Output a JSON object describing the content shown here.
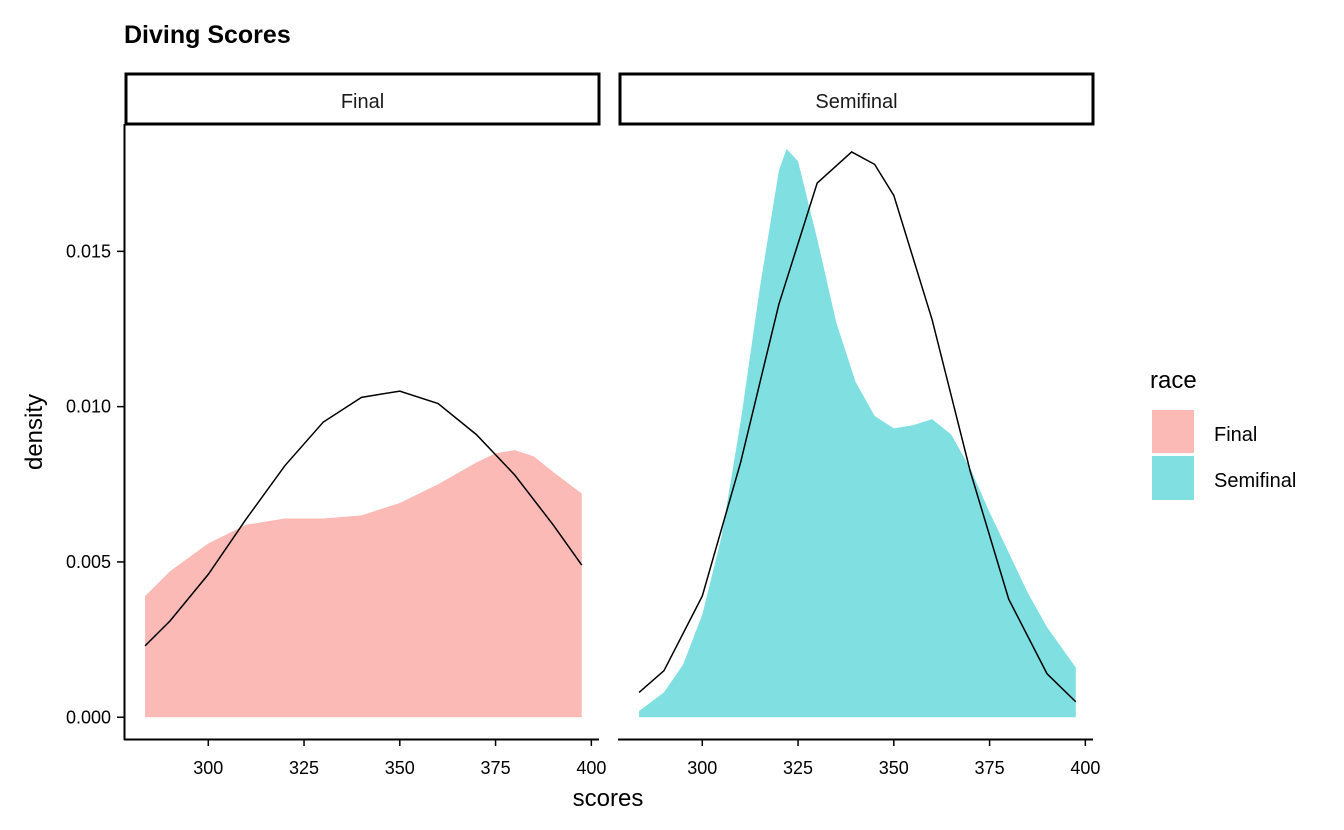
{
  "chart_data": {
    "type": "area",
    "title": "Diving Scores",
    "xlabel": "scores",
    "ylabel": "density",
    "xlim": [
      278,
      402
    ],
    "ylim": [
      -0.0007,
      0.0191
    ],
    "x_ticks": [
      300,
      325,
      350,
      375,
      400
    ],
    "x_tick_labels": [
      "300",
      "325",
      "350",
      "375",
      "400"
    ],
    "y_ticks": [
      0.0,
      0.005,
      0.01,
      0.015
    ],
    "y_tick_labels": [
      "0.000",
      "0.005",
      "0.010",
      "0.015"
    ],
    "grid": false,
    "legend": {
      "title": "race",
      "position": "right",
      "entries": [
        {
          "label": "Final",
          "color": "#F8766D"
        },
        {
          "label": "Semifinal",
          "color": "#00BFC4"
        }
      ]
    },
    "facets": [
      {
        "label": "Final",
        "fill_color": "#F8766D",
        "density": {
          "x": [
            283.5,
            290,
            300,
            310,
            320,
            330,
            340,
            350,
            360,
            370,
            375,
            380,
            385,
            390,
            397.5
          ],
          "y": [
            0.0039,
            0.0047,
            0.0056,
            0.0062,
            0.0064,
            0.0064,
            0.0065,
            0.0069,
            0.0075,
            0.0082,
            0.0085,
            0.0086,
            0.0084,
            0.0079,
            0.0072
          ]
        },
        "normal_curve": {
          "x": [
            283.5,
            290,
            300,
            310,
            320,
            330,
            340,
            350,
            360,
            370,
            380,
            390,
            397.5
          ],
          "y": [
            0.0023,
            0.0031,
            0.0046,
            0.0064,
            0.0081,
            0.0095,
            0.0103,
            0.0105,
            0.0101,
            0.0091,
            0.0078,
            0.0062,
            0.0049
          ]
        }
      },
      {
        "label": "Semifinal",
        "fill_color": "#00BFC4",
        "density": {
          "x": [
            283.5,
            290,
            295,
            300,
            305,
            310,
            315,
            320,
            322,
            325,
            330,
            335,
            340,
            345,
            350,
            355,
            360,
            365,
            370,
            375,
            380,
            385,
            390,
            397.5
          ],
          "y": [
            0.0002,
            0.0008,
            0.0017,
            0.0033,
            0.0058,
            0.0095,
            0.0138,
            0.0176,
            0.0183,
            0.0179,
            0.0154,
            0.0127,
            0.0108,
            0.0097,
            0.0093,
            0.0094,
            0.0096,
            0.0091,
            0.008,
            0.0066,
            0.0053,
            0.004,
            0.0029,
            0.0016
          ]
        },
        "normal_curve": {
          "x": [
            283.5,
            290,
            300,
            310,
            320,
            330,
            339,
            345,
            350,
            360,
            370,
            380,
            390,
            397.5
          ],
          "y": [
            0.0008,
            0.0015,
            0.0039,
            0.0082,
            0.0133,
            0.0172,
            0.0182,
            0.0178,
            0.0168,
            0.0128,
            0.0079,
            0.0038,
            0.0014,
            0.0005
          ]
        }
      }
    ]
  }
}
